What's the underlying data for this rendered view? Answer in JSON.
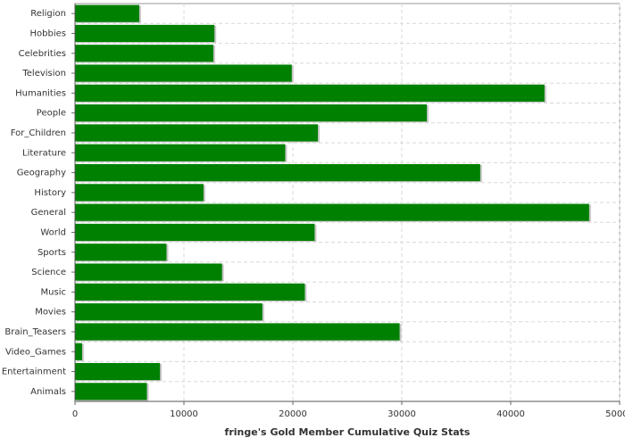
{
  "chart_data": {
    "type": "barh",
    "title": "fringe's Gold Member Cumulative Quiz Stats",
    "categories": [
      "Religion",
      "Hobbies",
      "Celebrities",
      "Television",
      "Humanities",
      "People",
      "For_Children",
      "Literature",
      "Geography",
      "History",
      "General",
      "World",
      "Sports",
      "Science",
      "Music",
      "Movies",
      "Brain_Teasers",
      "Video_Games",
      "Entertainment",
      "Animals"
    ],
    "values": [
      5900,
      12800,
      12700,
      19900,
      43100,
      32300,
      22300,
      19300,
      37200,
      11800,
      47200,
      22000,
      8400,
      13500,
      21100,
      17200,
      29800,
      650,
      7800,
      6600
    ],
    "color": "#008000",
    "xlim": [
      0,
      50000
    ],
    "xticks": [
      0,
      10000,
      20000,
      30000,
      40000,
      50000
    ],
    "grid": true
  }
}
